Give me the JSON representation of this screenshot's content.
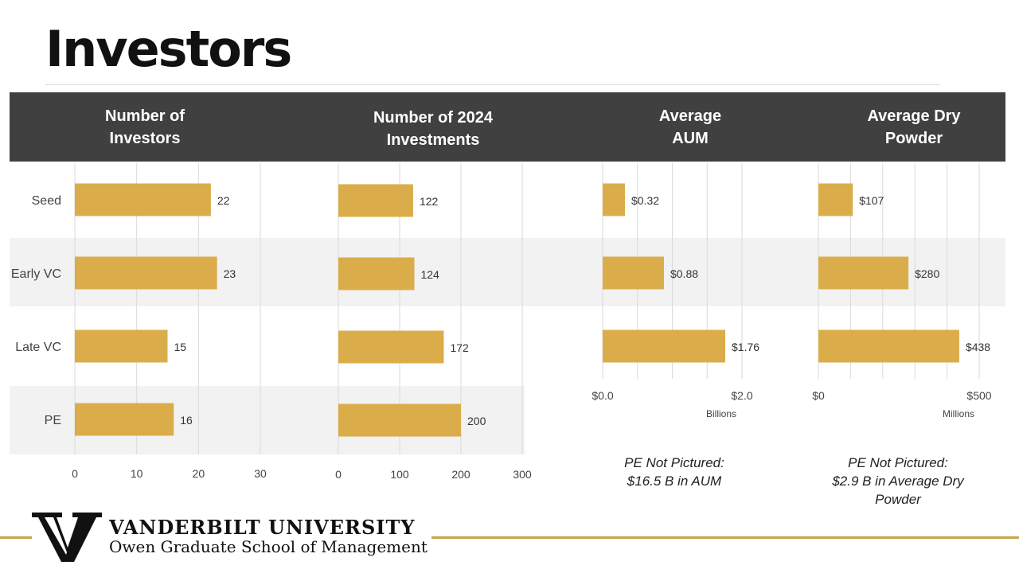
{
  "slide": {
    "title": "Investors"
  },
  "rows": [
    "Seed",
    "Early VC",
    "Late VC",
    "PE"
  ],
  "bar_color": "#dbac4a",
  "band_color": "#f2f2f2",
  "header_color": "#404040",
  "chart_data": [
    {
      "type": "bar",
      "orientation": "horizontal",
      "title": "Number of\nInvestors",
      "categories": [
        "Seed",
        "Early VC",
        "Late VC",
        "PE"
      ],
      "values": [
        22,
        23,
        15,
        16
      ],
      "labels": [
        "22",
        "23",
        "15",
        "16"
      ],
      "ticks": [
        0,
        10,
        20,
        30
      ],
      "tick_labels": [
        "0",
        "10",
        "20",
        "30"
      ],
      "xlim": [
        0,
        30
      ],
      "axis_unit": "",
      "grid": true
    },
    {
      "type": "bar",
      "orientation": "horizontal",
      "title": "Number of 2024\nInvestments",
      "categories": [
        "Seed",
        "Early VC",
        "Late VC",
        "PE"
      ],
      "values": [
        122,
        124,
        172,
        200
      ],
      "labels": [
        "122",
        "124",
        "172",
        "200"
      ],
      "ticks": [
        0,
        100,
        200,
        300
      ],
      "tick_labels": [
        "0",
        "100",
        "200",
        "300"
      ],
      "xlim": [
        0,
        300
      ],
      "axis_unit": "",
      "grid": true
    },
    {
      "type": "bar",
      "orientation": "horizontal",
      "title": "Average\nAUM",
      "categories": [
        "Seed",
        "Early VC",
        "Late VC"
      ],
      "values": [
        0.32,
        0.88,
        1.76
      ],
      "labels": [
        "$0.32",
        "$0.88",
        "$1.76"
      ],
      "ticks": [
        0,
        2
      ],
      "tick_labels": [
        "$0.0",
        "$2.0"
      ],
      "gridlines": [
        0,
        0.5,
        1,
        1.5,
        2
      ],
      "xlim": [
        0,
        2
      ],
      "axis_unit": "Billions",
      "grid": true
    },
    {
      "type": "bar",
      "orientation": "horizontal",
      "title": "Average Dry\nPowder",
      "categories": [
        "Seed",
        "Early VC",
        "Late VC"
      ],
      "values": [
        107,
        280,
        438
      ],
      "labels": [
        "$107",
        "$280",
        "$438"
      ],
      "ticks": [
        0,
        500
      ],
      "tick_labels": [
        "$0",
        "$500"
      ],
      "gridlines": [
        0,
        100,
        200,
        300,
        400,
        500
      ],
      "xlim": [
        0,
        500
      ],
      "axis_unit": "Millions",
      "grid": true
    }
  ],
  "notes": {
    "aum": "PE Not Pictured:\n$16.5 B in AUM",
    "dry_powder": "PE Not Pictured:\n$2.9 B in Average Dry\nPowder"
  },
  "footer": {
    "logo_letter": "V",
    "university": "VANDERBILT UNIVERSITY",
    "school": "Owen Graduate School of Management"
  }
}
